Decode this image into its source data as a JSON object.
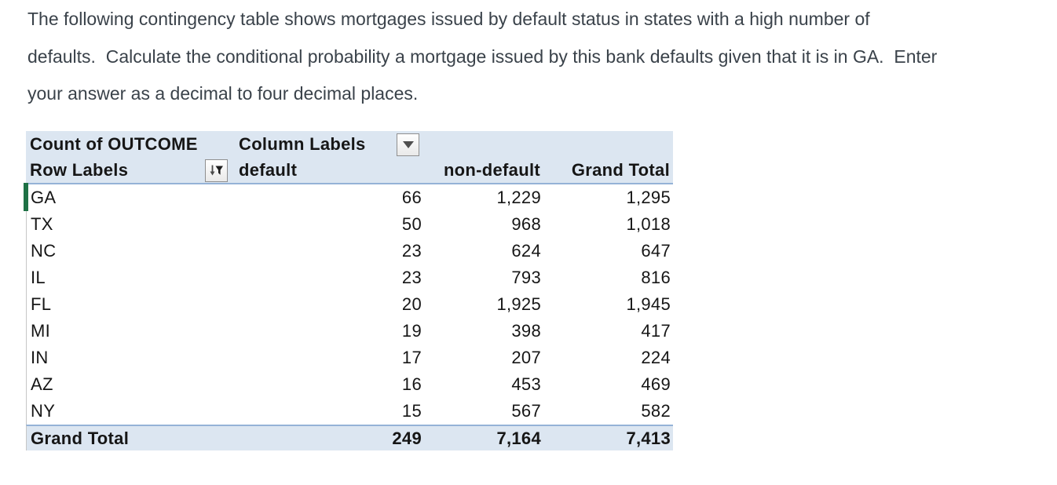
{
  "question": {
    "lines": [
      "The following contingency table shows mortgages issued by default status in states with a high number of",
      "defaults.  Calculate the conditional probability a mortgage issued by this bank defaults given that it is in GA.  Enter",
      "your answer as a decimal to four decimal places."
    ]
  },
  "pivot": {
    "title_cell": "Count of OUTCOME",
    "column_labels_cell": "Column Labels",
    "row_labels_cell": "Row Labels",
    "columns": [
      "default",
      "non-default",
      "Grand Total"
    ],
    "rows": [
      {
        "label": "GA",
        "default": "66",
        "non_default": "1,229",
        "grand_total": "1,295"
      },
      {
        "label": "TX",
        "default": "50",
        "non_default": "968",
        "grand_total": "1,018"
      },
      {
        "label": "NC",
        "default": "23",
        "non_default": "624",
        "grand_total": "647"
      },
      {
        "label": "IL",
        "default": "23",
        "non_default": "793",
        "grand_total": "816"
      },
      {
        "label": "FL",
        "default": "20",
        "non_default": "1,925",
        "grand_total": "1,945"
      },
      {
        "label": "MI",
        "default": "19",
        "non_default": "398",
        "grand_total": "417"
      },
      {
        "label": "IN",
        "default": "17",
        "non_default": "207",
        "grand_total": "224"
      },
      {
        "label": "AZ",
        "default": "16",
        "non_default": "453",
        "grand_total": "469"
      },
      {
        "label": "NY",
        "default": "15",
        "non_default": "567",
        "grand_total": "582"
      }
    ],
    "grand_total": {
      "label": "Grand Total",
      "default": "249",
      "non_default": "7,164",
      "grand_total": "7,413"
    },
    "icons": {
      "column_labels_dropdown": "chevron-down-icon",
      "row_labels_button": "sort-filter-icon"
    },
    "colors": {
      "header_bg": "#dce6f1",
      "total_bg": "#dce6f1",
      "header_border": "#95b3d7",
      "active_row_indicator_green": "#1e7145",
      "table_text": "#161616",
      "question_text": "#3a424a"
    }
  }
}
